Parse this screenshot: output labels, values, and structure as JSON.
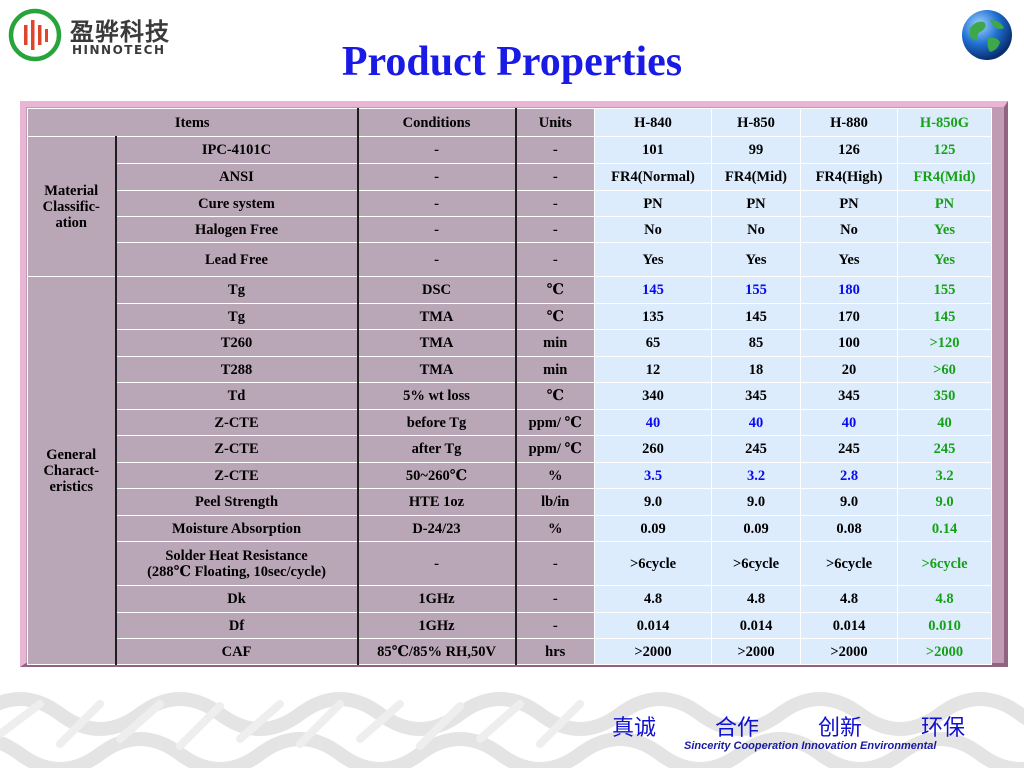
{
  "header": {
    "brand_cn": "盈骅科技",
    "brand_en": "HINNOTECH",
    "title": "Product Properties"
  },
  "colors": {
    "title": "#1a1ae6",
    "highlight_blue": "#0a0af0",
    "highlight_green": "#16a116",
    "product_col_bg": "#dcecfd",
    "label_col_bg": "#b9a6b6",
    "frame": "#c19ab3"
  },
  "table": {
    "headers": {
      "items": "Items",
      "conditions": "Conditions",
      "units": "Units",
      "products": [
        "H-840",
        "H-850",
        "H-880",
        "H-850G"
      ]
    },
    "groups": [
      {
        "category": "Material Classific-ation",
        "rows": [
          {
            "item": "IPC-4101C",
            "cond": "-",
            "unit": "-",
            "vals": [
              "101",
              "99",
              "126",
              "125"
            ],
            "tall": false
          },
          {
            "item": "ANSI",
            "cond": "-",
            "unit": "-",
            "vals": [
              "FR4(Normal)",
              "FR4(Mid)",
              "FR4(High)",
              "FR4(Mid)"
            ],
            "tall": false
          },
          {
            "item": "Cure system",
            "cond": "-",
            "unit": "-",
            "vals": [
              "PN",
              "PN",
              "PN",
              "PN"
            ],
            "tall": false
          },
          {
            "item": "Halogen Free",
            "cond": "-",
            "unit": "-",
            "vals": [
              "No",
              "No",
              "No",
              "Yes"
            ],
            "tall": false
          },
          {
            "item": "Lead Free",
            "cond": "-",
            "unit": "-",
            "vals": [
              "Yes",
              "Yes",
              "Yes",
              "Yes"
            ],
            "tall": true
          }
        ]
      },
      {
        "category": "General Charact-eristics",
        "rows": [
          {
            "item": "Tg",
            "cond": "DSC",
            "unit": "℃",
            "vals": [
              "145",
              "155",
              "180",
              "155"
            ],
            "blue": true
          },
          {
            "item": "Tg",
            "cond": "TMA",
            "unit": "℃",
            "vals": [
              "135",
              "145",
              "170",
              "145"
            ]
          },
          {
            "item": "T260",
            "cond": "TMA",
            "unit": "min",
            "vals": [
              "65",
              "85",
              "100",
              ">120"
            ]
          },
          {
            "item": "T288",
            "cond": "TMA",
            "unit": "min",
            "vals": [
              "12",
              "18",
              "20",
              ">60"
            ]
          },
          {
            "item": "Td",
            "cond": "5% wt loss",
            "unit": "℃",
            "vals": [
              "340",
              "345",
              "345",
              "350"
            ]
          },
          {
            "item": "Z-CTE",
            "cond": "before Tg",
            "unit": "ppm/ ℃",
            "vals": [
              "40",
              "40",
              "40",
              "40"
            ],
            "blue": true
          },
          {
            "item": "Z-CTE",
            "cond": "after Tg",
            "unit": "ppm/ ℃",
            "vals": [
              "260",
              "245",
              "245",
              "245"
            ]
          },
          {
            "item": "Z-CTE",
            "cond": "50~260℃",
            "unit": "%",
            "vals": [
              "3.5",
              "3.2",
              "2.8",
              "3.2"
            ],
            "blue": true
          },
          {
            "item": "Peel Strength",
            "cond": "HTE 1oz",
            "unit": "lb/in",
            "vals": [
              "9.0",
              "9.0",
              "9.0",
              "9.0"
            ]
          },
          {
            "item": "Moisture Absorption",
            "cond": "D-24/23",
            "unit": "%",
            "vals": [
              "0.09",
              "0.09",
              "0.08",
              "0.14"
            ]
          },
          {
            "item": "Solder Heat Resistance",
            "item2": "(288℃ Floating, 10sec/cycle)",
            "cond": "-",
            "unit": "-",
            "vals": [
              ">6cycle",
              ">6cycle",
              ">6cycle",
              ">6cycle"
            ]
          },
          {
            "item": "Dk",
            "cond": "1GHz",
            "unit": "-",
            "vals": [
              "4.8",
              "4.8",
              "4.8",
              "4.8"
            ]
          },
          {
            "item": "Df",
            "cond": "1GHz",
            "unit": "-",
            "vals": [
              "0.014",
              "0.014",
              "0.014",
              "0.010"
            ]
          },
          {
            "item": "CAF",
            "cond": "85℃/85% RH,50V",
            "unit": "hrs",
            "vals": [
              ">2000",
              ">2000",
              ">2000",
              ">2000"
            ]
          }
        ]
      }
    ]
  },
  "footer": {
    "values_cn": [
      "真诚",
      "合作",
      "创新",
      "环保"
    ],
    "values_en": "Sincerity Cooperation Innovation Environmental"
  }
}
